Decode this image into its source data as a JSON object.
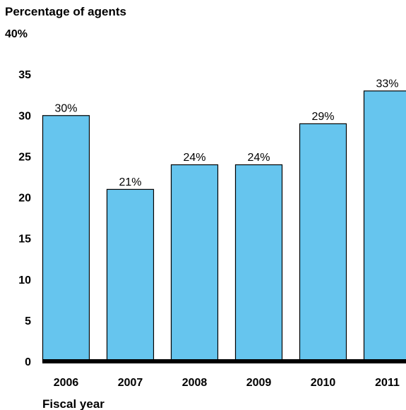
{
  "chart_data": {
    "type": "bar",
    "ylabel": "Percentage of agents",
    "xlabel": "Fiscal year",
    "categories": [
      "2006",
      "2007",
      "2008",
      "2009",
      "2010",
      "2011"
    ],
    "values": [
      30,
      21,
      24,
      24,
      29,
      33
    ],
    "data_labels": [
      "30%",
      "21%",
      "24%",
      "24%",
      "29%",
      "33%"
    ],
    "ylim": [
      0,
      40
    ],
    "yticks": [
      "0",
      "5",
      "10",
      "15",
      "20",
      "25",
      "30",
      "35",
      "40%"
    ],
    "grid": false,
    "legend": "none",
    "bar_color": "#66c5ee",
    "bar_edge_color": "#000000"
  }
}
